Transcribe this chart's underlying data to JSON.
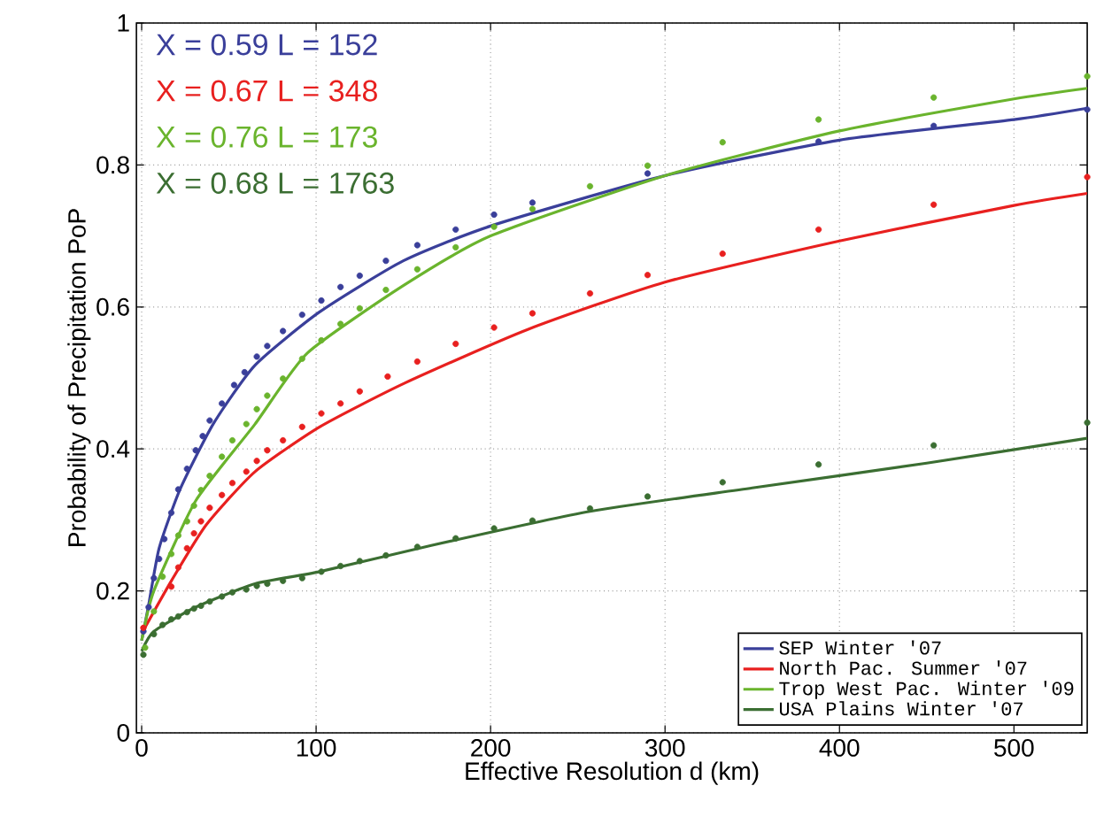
{
  "chart_data": {
    "type": "line",
    "xlabel": "Effective Resolution d (km)",
    "ylabel": "Probability of Precipitation PoP",
    "xlim": [
      -3,
      542
    ],
    "ylim": [
      0,
      1
    ],
    "xticks": [
      0,
      100,
      200,
      300,
      400,
      500
    ],
    "yticks": [
      0,
      0.2,
      0.4,
      0.6,
      0.8,
      1
    ],
    "grid": true,
    "legend": "bottom right",
    "line_style": "solid",
    "annotations": [
      "X = 0.59  L = 152",
      "X = 0.67  L = 348",
      "X = 0.76  L = 173",
      "X = 0.68  L = 1763"
    ],
    "series": [
      {
        "type": "scatter",
        "marker": "circle",
        "color": "#3a3f9a",
        "x": [
          1,
          4,
          7,
          10,
          13,
          17,
          21,
          26,
          31,
          35,
          39,
          46,
          53,
          59,
          66,
          72,
          81,
          92,
          103,
          114,
          125,
          140,
          158,
          180,
          202,
          224,
          290,
          388,
          454,
          542
        ],
        "values": [
          0.143,
          0.177,
          0.218,
          0.245,
          0.273,
          0.31,
          0.343,
          0.372,
          0.398,
          0.418,
          0.44,
          0.464,
          0.49,
          0.508,
          0.53,
          0.545,
          0.566,
          0.589,
          0.609,
          0.628,
          0.644,
          0.665,
          0.687,
          0.709,
          0.73,
          0.747,
          0.788,
          0.833,
          0.855,
          0.878
        ]
      },
      {
        "type": "scatter",
        "marker": "circle",
        "color": "#e8201f",
        "x": [
          1,
          17,
          21,
          26,
          30,
          34,
          39,
          46,
          52,
          60,
          66,
          72,
          81,
          92,
          103,
          114,
          125,
          141,
          158,
          180,
          202,
          224,
          257,
          290,
          333,
          388,
          454,
          542
        ],
        "values": [
          0.148,
          0.206,
          0.233,
          0.26,
          0.281,
          0.298,
          0.317,
          0.335,
          0.352,
          0.368,
          0.383,
          0.398,
          0.412,
          0.431,
          0.45,
          0.464,
          0.481,
          0.502,
          0.523,
          0.548,
          0.571,
          0.591,
          0.619,
          0.645,
          0.675,
          0.709,
          0.744,
          0.783
        ]
      },
      {
        "type": "scatter",
        "marker": "circle",
        "color": "#6ab42d",
        "x": [
          2,
          7,
          12,
          17,
          21,
          26,
          30,
          34,
          39,
          46,
          52,
          60,
          66,
          72,
          81,
          92,
          103,
          114,
          125,
          140,
          158,
          180,
          202,
          224,
          257,
          290,
          333,
          388,
          454,
          542
        ],
        "values": [
          0.12,
          0.171,
          0.22,
          0.252,
          0.278,
          0.298,
          0.32,
          0.342,
          0.362,
          0.389,
          0.412,
          0.435,
          0.456,
          0.475,
          0.499,
          0.527,
          0.553,
          0.576,
          0.598,
          0.624,
          0.653,
          0.684,
          0.713,
          0.738,
          0.77,
          0.799,
          0.832,
          0.864,
          0.895,
          0.925
        ]
      },
      {
        "type": "scatter",
        "marker": "circle",
        "color": "#3b6e32",
        "x": [
          1,
          7,
          12,
          17,
          21,
          26,
          30,
          34,
          39,
          46,
          52,
          60,
          66,
          72,
          81,
          92,
          103,
          114,
          125,
          140,
          158,
          180,
          202,
          224,
          257,
          290,
          333,
          388,
          454,
          542
        ],
        "values": [
          0.11,
          0.139,
          0.152,
          0.16,
          0.164,
          0.17,
          0.175,
          0.179,
          0.185,
          0.192,
          0.198,
          0.202,
          0.207,
          0.21,
          0.214,
          0.218,
          0.227,
          0.235,
          0.242,
          0.25,
          0.262,
          0.274,
          0.288,
          0.299,
          0.316,
          0.333,
          0.353,
          0.378,
          0.405,
          0.437
        ]
      },
      {
        "name": "SEP Winter '07",
        "marker": "none",
        "color": "#3a3f9a",
        "x": [
          0,
          4,
          10,
          22,
          41,
          65,
          102,
          150,
          200,
          300,
          400,
          500,
          542
        ],
        "values": [
          0.13,
          0.18,
          0.26,
          0.343,
          0.435,
          0.518,
          0.593,
          0.665,
          0.714,
          0.785,
          0.835,
          0.864,
          0.88
        ]
      },
      {
        "name": "North Pac. Summer '07",
        "marker": "none",
        "color": "#e8201f",
        "x": [
          0,
          17,
          37,
          65,
          102,
          151,
          221,
          300,
          400,
          500,
          542
        ],
        "values": [
          0.14,
          0.214,
          0.293,
          0.368,
          0.431,
          0.493,
          0.568,
          0.635,
          0.693,
          0.743,
          0.76
        ]
      },
      {
        "name": "Trop West Pac. Winter '09",
        "marker": "none",
        "color": "#6ab42d",
        "x": [
          0,
          7,
          31,
          65,
          95,
          150,
          200,
          300,
          400,
          500,
          542
        ],
        "values": [
          0.13,
          0.2,
          0.327,
          0.435,
          0.535,
          0.63,
          0.7,
          0.785,
          0.848,
          0.893,
          0.908
        ]
      },
      {
        "name": "USA Plains Winter '07",
        "marker": "none",
        "color": "#3b6e32",
        "x": [
          0,
          7,
          31,
          65,
          102,
          166,
          257,
          350,
          450,
          542
        ],
        "values": [
          0.115,
          0.143,
          0.177,
          0.21,
          0.227,
          0.264,
          0.312,
          0.345,
          0.38,
          0.415
        ]
      }
    ]
  }
}
